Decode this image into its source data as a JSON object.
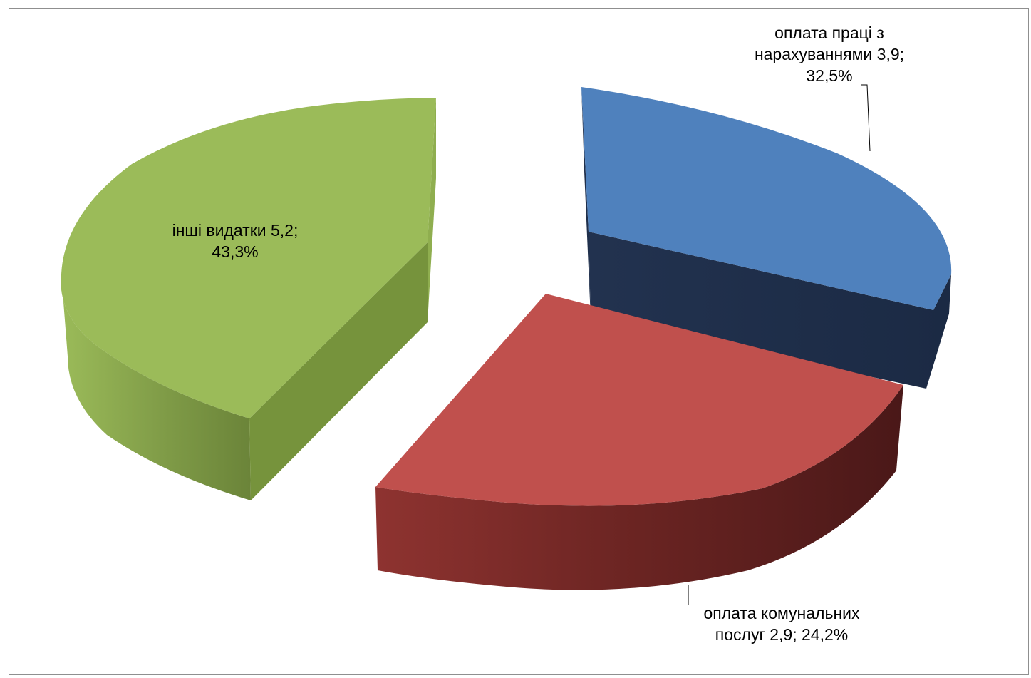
{
  "chart_data": {
    "type": "pie",
    "title": "",
    "slices": [
      {
        "name": "оплата праці з нарахуваннями",
        "value": 3.9,
        "percent": 32.5,
        "color": "#4F81BD",
        "label_lines": [
          "оплата праці з",
          "нарахуваннями 3,9;",
          "32,5%"
        ]
      },
      {
        "name": "оплата комунальних послуг",
        "value": 2.9,
        "percent": 24.2,
        "color": "#C0504D",
        "label_lines": [
          "оплата комунальних",
          "послуг 2,9; 24,2%"
        ]
      },
      {
        "name": "інші видатки",
        "value": 5.2,
        "percent": 43.3,
        "color": "#9BBB59",
        "label_lines": [
          "інші видатки 5,2;",
          "43,3%"
        ]
      }
    ],
    "style": "3d-exploded",
    "legend": "none"
  }
}
